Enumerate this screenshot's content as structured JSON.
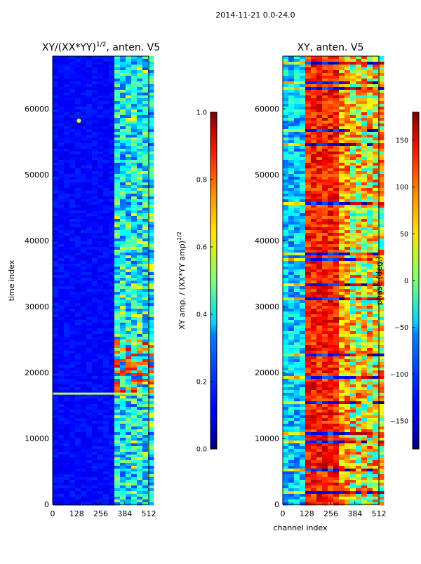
{
  "figure": {
    "suptitle": "2014-11-21 0.0-24.0"
  },
  "chart_data": [
    {
      "type": "heatmap",
      "title": "XY/(XX*YY)",
      "title_exponent": "1/2",
      "title_suffix": ", anten. V5",
      "xlabel": "",
      "ylabel": "time index",
      "x_ticks": [
        0,
        128,
        256,
        384,
        512
      ],
      "y_ticks": [
        0,
        10000,
        20000,
        30000,
        40000,
        50000,
        60000
      ],
      "xlim": [
        0,
        512
      ],
      "ylim": [
        0,
        68000
      ],
      "colormap": "jet",
      "colorbar": {
        "label": "XY amp. / (XX*YY amp)",
        "label_exponent": "1/2",
        "range": [
          0.0,
          1.0
        ],
        "ticks": [
          "0.0",
          "0.2",
          "0.4",
          "0.6",
          "0.8",
          "1.0"
        ]
      },
      "features": {
        "bright_band_time": 16800,
        "active_channel_range": [
          330,
          512
        ],
        "spot": {
          "channel": 140,
          "time": 58200
        }
      }
    },
    {
      "type": "heatmap",
      "title": "XY, anten. V5",
      "xlabel": "channel index",
      "ylabel": "",
      "x_ticks": [
        0,
        128,
        256,
        384,
        512
      ],
      "y_ticks": [
        0,
        10000,
        20000,
        30000,
        40000,
        50000,
        60000
      ],
      "xlim": [
        0,
        512
      ],
      "ylim": [
        0,
        68000
      ],
      "colormap": "jet",
      "colorbar": {
        "label": "phase (deg.)",
        "range": [
          -180,
          180
        ],
        "ticks": [
          "150",
          "100",
          "50",
          "0",
          "−50",
          "−100",
          "−150"
        ]
      }
    }
  ]
}
